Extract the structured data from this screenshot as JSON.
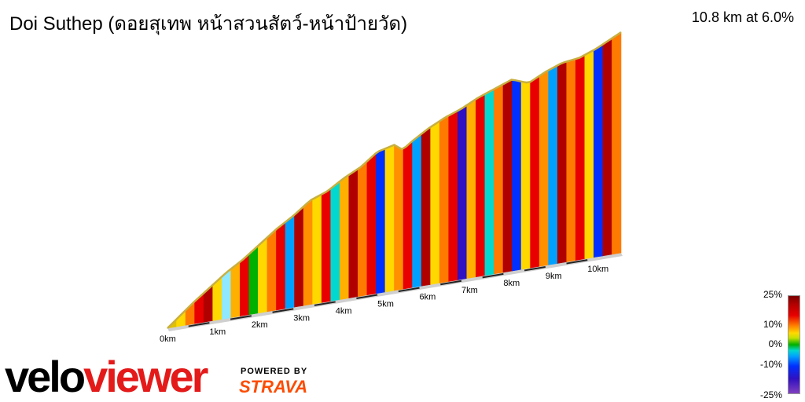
{
  "header": {
    "title": "Doi Suthep (ดอยสุเทพ หน้าสวนสัตว์-หน้าป้ายวัด)",
    "summary": "10.8 km at 6.0%"
  },
  "chart_data": {
    "type": "area",
    "title": "Doi Suthep (ดอยสุเทพ หน้าสวนสัตว์-หน้าป้ายวัด)",
    "distance_km": 10.8,
    "average_gradient_percent": 6.0,
    "x_unit": "km",
    "x_ticks": [
      "0km",
      "1km",
      "2km",
      "3km",
      "4km",
      "5km",
      "6km",
      "7km",
      "8km",
      "9km",
      "10km"
    ],
    "y_range_relative": [
      0,
      1
    ],
    "elevation_profile_relative": {
      "x_km": [
        0,
        0.3,
        0.6,
        1.0,
        1.4,
        1.8,
        2.2,
        2.6,
        3.0,
        3.4,
        3.8,
        4.2,
        4.6,
        5.0,
        5.4,
        5.6,
        5.8,
        6.2,
        6.6,
        7.0,
        7.4,
        7.8,
        8.2,
        8.6,
        9.0,
        9.4,
        9.8,
        10.2,
        10.5,
        10.8
      ],
      "elevation": [
        0,
        0.05,
        0.1,
        0.16,
        0.22,
        0.27,
        0.33,
        0.39,
        0.44,
        0.5,
        0.53,
        0.58,
        0.62,
        0.68,
        0.7,
        0.67,
        0.7,
        0.75,
        0.79,
        0.82,
        0.86,
        0.89,
        0.92,
        0.89,
        0.93,
        0.96,
        0.97,
        1.0,
        1.03,
        1.06
      ]
    },
    "gradient_colors_sequence": [
      "#e0c000",
      "#ffd800",
      "#ff7a00",
      "#e80000",
      "#b00000",
      "#ffd800",
      "#90e8ff",
      "#ffb000",
      "#e80000",
      "#00b000",
      "#ffd800",
      "#ff7a00",
      "#e80000",
      "#00a0ff",
      "#b00000",
      "#ff9000",
      "#ffd800",
      "#e80000",
      "#00d8d0",
      "#ffb000",
      "#b00000",
      "#ff7a00",
      "#e80000",
      "#0030ff",
      "#ffd800",
      "#ff9000",
      "#e80000",
      "#00a0ff",
      "#b00000",
      "#ffd800",
      "#ff7a00",
      "#e80000",
      "#3010c0",
      "#ffb000",
      "#e80000",
      "#00d8d0",
      "#ff7a00",
      "#b00000",
      "#0030ff",
      "#ffd800",
      "#e80000",
      "#ff9000",
      "#00a0ff",
      "#b00000",
      "#ff7a00",
      "#e80000",
      "#ffd800",
      "#0030ff",
      "#b00000",
      "#ff7a00"
    ],
    "legend": {
      "position": "right",
      "labels": [
        "25%",
        "10%",
        "0%",
        "-10%",
        "-25%"
      ]
    }
  },
  "branding": {
    "logo_part1": "velo",
    "logo_part2": "viewer",
    "powered_by": "POWERED BY",
    "strava": "STRAVA"
  }
}
